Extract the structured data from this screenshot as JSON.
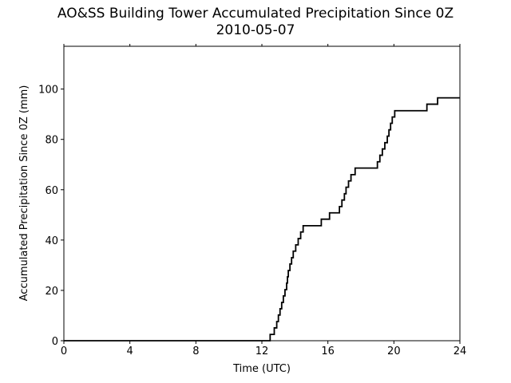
{
  "chart_data": {
    "type": "line",
    "title": "AO&SS Building Tower Accumulated Precipitation Since 0Z",
    "subtitle": "2010-05-07",
    "xlabel": "Time (UTC)",
    "ylabel": "Accumulated Precipitation Since 0Z (mm)",
    "xlim": [
      0,
      24
    ],
    "ylim": [
      0,
      117
    ],
    "xticks": [
      0,
      4,
      8,
      12,
      16,
      20,
      24
    ],
    "yticks": [
      0,
      20,
      40,
      60,
      80,
      100
    ],
    "grid": false,
    "step": true,
    "series": [
      {
        "color": "#000000",
        "points": [
          [
            0,
            0
          ],
          [
            12.5,
            0
          ],
          [
            12.5,
            2.5
          ],
          [
            12.75,
            2.5
          ],
          [
            12.75,
            5.1
          ],
          [
            12.9,
            5.1
          ],
          [
            12.9,
            7.6
          ],
          [
            13.0,
            7.6
          ],
          [
            13.0,
            10.2
          ],
          [
            13.1,
            10.2
          ],
          [
            13.1,
            12.7
          ],
          [
            13.2,
            12.7
          ],
          [
            13.2,
            15.2
          ],
          [
            13.3,
            15.2
          ],
          [
            13.3,
            17.8
          ],
          [
            13.4,
            17.8
          ],
          [
            13.4,
            20.3
          ],
          [
            13.5,
            20.3
          ],
          [
            13.5,
            22.9
          ],
          [
            13.55,
            22.9
          ],
          [
            13.55,
            25.4
          ],
          [
            13.6,
            25.4
          ],
          [
            13.6,
            27.9
          ],
          [
            13.7,
            27.9
          ],
          [
            13.7,
            30.5
          ],
          [
            13.8,
            30.5
          ],
          [
            13.8,
            33.0
          ],
          [
            13.9,
            33.0
          ],
          [
            13.9,
            35.6
          ],
          [
            14.05,
            35.6
          ],
          [
            14.05,
            38.1
          ],
          [
            14.2,
            38.1
          ],
          [
            14.2,
            40.6
          ],
          [
            14.35,
            40.6
          ],
          [
            14.35,
            43.2
          ],
          [
            14.5,
            43.2
          ],
          [
            14.5,
            45.7
          ],
          [
            15.6,
            45.7
          ],
          [
            15.6,
            48.3
          ],
          [
            16.1,
            48.3
          ],
          [
            16.1,
            50.8
          ],
          [
            16.7,
            50.8
          ],
          [
            16.7,
            53.3
          ],
          [
            16.85,
            53.3
          ],
          [
            16.85,
            55.9
          ],
          [
            17.0,
            55.9
          ],
          [
            17.0,
            58.4
          ],
          [
            17.1,
            58.4
          ],
          [
            17.1,
            61.0
          ],
          [
            17.25,
            61.0
          ],
          [
            17.25,
            63.5
          ],
          [
            17.4,
            63.5
          ],
          [
            17.4,
            66.0
          ],
          [
            17.65,
            66.0
          ],
          [
            17.65,
            68.6
          ],
          [
            19.0,
            68.6
          ],
          [
            19.0,
            71.1
          ],
          [
            19.15,
            71.1
          ],
          [
            19.15,
            73.7
          ],
          [
            19.3,
            73.7
          ],
          [
            19.3,
            76.2
          ],
          [
            19.45,
            76.2
          ],
          [
            19.45,
            78.7
          ],
          [
            19.6,
            78.7
          ],
          [
            19.6,
            81.3
          ],
          [
            19.7,
            81.3
          ],
          [
            19.7,
            83.8
          ],
          [
            19.8,
            83.8
          ],
          [
            19.8,
            86.4
          ],
          [
            19.9,
            86.4
          ],
          [
            19.9,
            88.9
          ],
          [
            20.05,
            88.9
          ],
          [
            20.05,
            91.4
          ],
          [
            22.0,
            91.4
          ],
          [
            22.0,
            94.0
          ],
          [
            22.65,
            94.0
          ],
          [
            22.65,
            96.5
          ],
          [
            24,
            96.5
          ]
        ]
      }
    ]
  }
}
